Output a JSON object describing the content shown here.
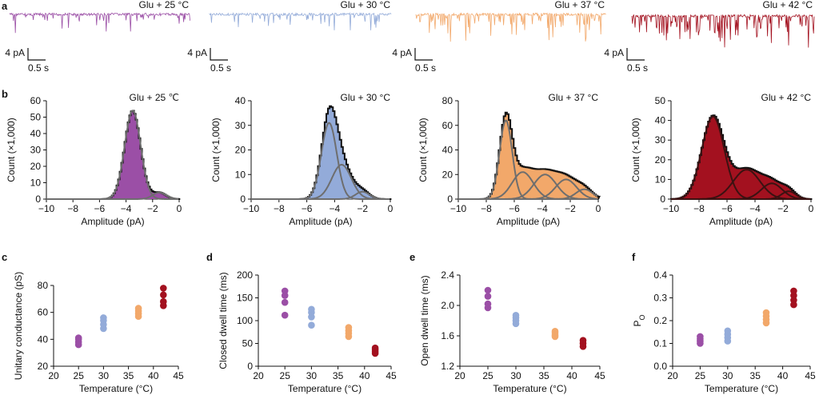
{
  "colors": {
    "c25": "#9b4fa6",
    "c30": "#93abd9",
    "c37": "#f2a86a",
    "c42": "#a3111f",
    "fit": "#6e6e6e",
    "fit42": "#3b1212"
  },
  "panel_a": {
    "letter": "a",
    "scale_y": "4 pA",
    "scale_x": "0.5 s",
    "traces": [
      {
        "title": "Glu + 25 °C",
        "color_key": "c25"
      },
      {
        "title": "Glu + 30 °C",
        "color_key": "c30"
      },
      {
        "title": "Glu + 37 °C",
        "color_key": "c37"
      },
      {
        "title": "Glu + 42 °C",
        "color_key": "c42"
      }
    ]
  },
  "chart_data": [
    {
      "type": "area",
      "panel": "b",
      "letter": "b",
      "title": "Glu + 25 ℃",
      "xlabel": "Amplitude (pA)",
      "ylabel": "Count (×1,000)",
      "xlim": [
        -10,
        0
      ],
      "ylim": [
        0,
        60
      ],
      "xticks": [
        -10,
        -8,
        -6,
        -4,
        -2,
        0
      ],
      "yticks": [
        0,
        10,
        20,
        30,
        40,
        50,
        60
      ],
      "color_key": "c25",
      "components": [
        {
          "mean": -3.5,
          "height": 54,
          "sd": 0.6
        },
        {
          "mean": -1.5,
          "height": 4,
          "sd": 0.5
        }
      ]
    },
    {
      "type": "area",
      "panel": "b2",
      "title": "Glu + 30 °C",
      "xlabel": "Amplitude (pA)",
      "ylabel": "Count (×1,000)",
      "xlim": [
        -10,
        0
      ],
      "ylim": [
        0,
        40
      ],
      "xticks": [
        -10,
        -8,
        -6,
        -4,
        -2,
        0
      ],
      "yticks": [
        0,
        10,
        20,
        30,
        40
      ],
      "color_key": "c30",
      "components": [
        {
          "mean": -4.4,
          "height": 31,
          "sd": 0.55
        },
        {
          "mean": -3.5,
          "height": 14,
          "sd": 0.7
        },
        {
          "mean": -2.0,
          "height": 3,
          "sd": 0.5
        }
      ]
    },
    {
      "type": "area",
      "panel": "b3",
      "title": "Glu + 37 °C",
      "xlabel": "Amplitude (pA)",
      "ylabel": "Count (×1,000)",
      "xlim": [
        -10,
        0
      ],
      "ylim": [
        0,
        80
      ],
      "xticks": [
        -10,
        -8,
        -6,
        -4,
        -2,
        0
      ],
      "yticks": [
        0,
        20,
        40,
        60,
        80
      ],
      "color_key": "c37",
      "components": [
        {
          "mean": -6.6,
          "height": 64,
          "sd": 0.45
        },
        {
          "mean": -5.4,
          "height": 22,
          "sd": 0.75
        },
        {
          "mean": -3.8,
          "height": 20,
          "sd": 0.8
        },
        {
          "mean": -2.3,
          "height": 16,
          "sd": 0.75
        },
        {
          "mean": -1.0,
          "height": 8,
          "sd": 0.6
        }
      ]
    },
    {
      "type": "area",
      "panel": "b4",
      "title": "Glu + 42 °C",
      "xlabel": "Amplitude (pA)",
      "ylabel": "Count (×1,000)",
      "xlim": [
        -10,
        0
      ],
      "ylim": [
        0,
        50
      ],
      "xticks": [
        -10,
        -8,
        -6,
        -4,
        -2,
        0
      ],
      "yticks": [
        0,
        10,
        20,
        30,
        40,
        50
      ],
      "color_key": "c42",
      "components": [
        {
          "mean": -7.0,
          "height": 42,
          "sd": 0.8
        },
        {
          "mean": -4.6,
          "height": 15,
          "sd": 0.95
        },
        {
          "mean": -2.8,
          "height": 8,
          "sd": 0.75
        },
        {
          "mean": -1.6,
          "height": 4,
          "sd": 0.5
        }
      ]
    },
    {
      "type": "scatter",
      "panel": "c",
      "letter": "c",
      "xlabel": "Temperature (°C)",
      "ylabel": "Unitary conductance (pS)",
      "xlim": [
        20,
        45
      ],
      "ylim": [
        20,
        80
      ],
      "xticks": [
        20,
        25,
        30,
        35,
        40,
        45
      ],
      "yticks": [
        20,
        40,
        60,
        80
      ],
      "series": [
        {
          "color_key": "c25",
          "x": 25,
          "values": [
            36,
            38,
            40,
            41
          ]
        },
        {
          "color_key": "c30",
          "x": 30,
          "values": [
            48,
            51,
            54,
            56
          ]
        },
        {
          "color_key": "c37",
          "x": 37,
          "values": [
            57,
            59,
            61,
            63
          ]
        },
        {
          "color_key": "c42",
          "x": 42,
          "values": [
            65,
            68,
            73,
            78
          ]
        }
      ]
    },
    {
      "type": "scatter",
      "panel": "d",
      "letter": "d",
      "xlabel": "Temperature (°C)",
      "ylabel": "Closed dwell time (ms)",
      "xlim": [
        20,
        45
      ],
      "ylim": [
        0,
        200
      ],
      "xticks": [
        20,
        25,
        30,
        35,
        40,
        45
      ],
      "yticks": [
        0,
        50,
        100,
        150,
        200
      ],
      "series": [
        {
          "color_key": "c25",
          "x": 25,
          "values": [
            112,
            140,
            155,
            165
          ]
        },
        {
          "color_key": "c30",
          "x": 30,
          "values": [
            90,
            108,
            118,
            125
          ]
        },
        {
          "color_key": "c37",
          "x": 37,
          "values": [
            65,
            72,
            78,
            85
          ]
        },
        {
          "color_key": "c42",
          "x": 42,
          "values": [
            28,
            32,
            36,
            40
          ]
        }
      ]
    },
    {
      "type": "scatter",
      "panel": "e",
      "letter": "e",
      "xlabel": "Temperature (°C)",
      "ylabel": "Open dwell time (ms)",
      "xlim": [
        20,
        45
      ],
      "ylim": [
        1.2,
        2.4
      ],
      "xticks": [
        20,
        25,
        30,
        35,
        40,
        45
      ],
      "yticks": [
        1.2,
        1.6,
        2.0,
        2.4
      ],
      "series": [
        {
          "color_key": "c25",
          "x": 25,
          "values": [
            1.97,
            2.02,
            2.12,
            2.2
          ]
        },
        {
          "color_key": "c30",
          "x": 30,
          "values": [
            1.76,
            1.8,
            1.84,
            1.87
          ]
        },
        {
          "color_key": "c37",
          "x": 37,
          "values": [
            1.59,
            1.61,
            1.64,
            1.66
          ]
        },
        {
          "color_key": "c42",
          "x": 42,
          "values": [
            1.46,
            1.5,
            1.54
          ]
        }
      ]
    },
    {
      "type": "scatter",
      "panel": "f",
      "letter": "f",
      "xlabel": "Temperature (°C)",
      "ylabel": "P",
      "ylabel_sub": "O",
      "xlim": [
        20,
        45
      ],
      "ylim": [
        0,
        0.4
      ],
      "xticks": [
        20,
        25,
        30,
        35,
        40,
        45
      ],
      "yticks": [
        0,
        0.1,
        0.2,
        0.3,
        0.4
      ],
      "series": [
        {
          "color_key": "c25",
          "x": 25,
          "values": [
            0.1,
            0.11,
            0.12,
            0.13
          ]
        },
        {
          "color_key": "c30",
          "x": 30,
          "values": [
            0.11,
            0.125,
            0.14,
            0.155
          ]
        },
        {
          "color_key": "c37",
          "x": 37,
          "values": [
            0.19,
            0.205,
            0.22,
            0.235
          ]
        },
        {
          "color_key": "c42",
          "x": 42,
          "values": [
            0.27,
            0.29,
            0.31,
            0.33
          ]
        }
      ]
    }
  ]
}
